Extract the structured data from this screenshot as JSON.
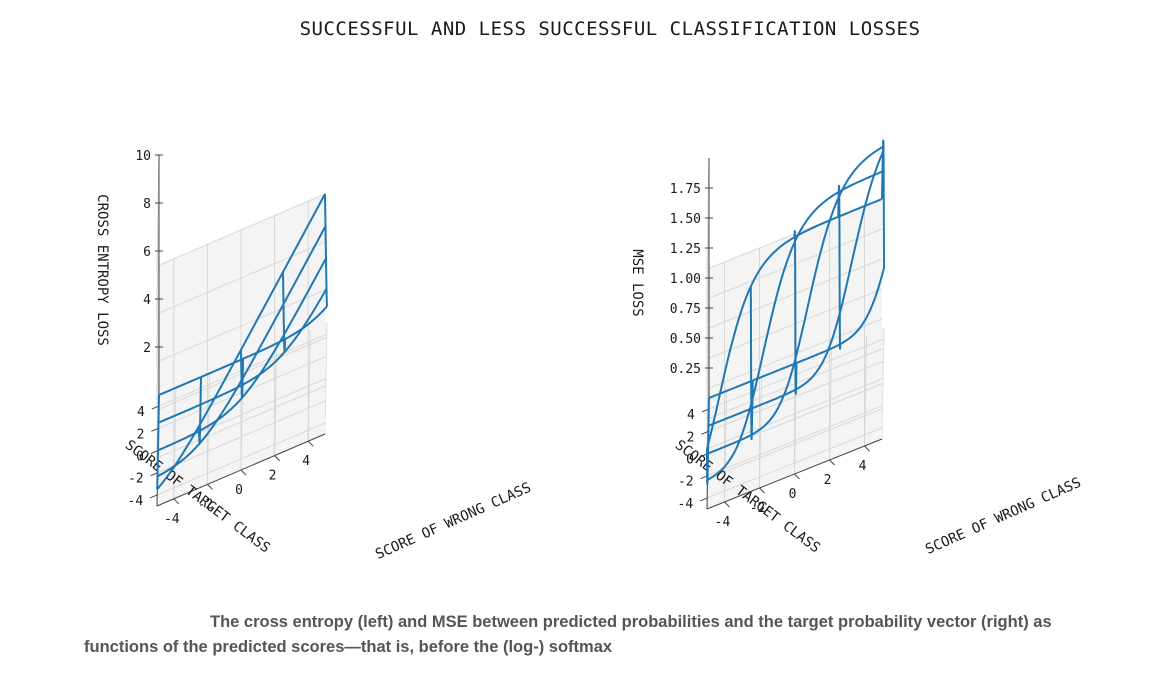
{
  "title": "SUCCESSFUL AND LESS SUCCESSFUL CLASSIFICATION LOSSES",
  "caption": "The cross entropy (left) and MSE between predicted probabilities and the target probability vector (right) as functions of the predicted scores—that is, before the (log-) softmax",
  "chart_data": [
    {
      "type": "surface",
      "zlabel": "CROSS ENTROPY LOSS",
      "xlabel": "SCORE OF TARGET CLASS",
      "ylabel": "SCORE OF WRONG CLASS",
      "x_ticks": [
        "4",
        "2",
        "0",
        "-2",
        "-4"
      ],
      "y_ticks": [
        "-4",
        "-2",
        "0",
        "2",
        "4"
      ],
      "z_ticks": [
        "2",
        "4",
        "6",
        "8",
        "10"
      ],
      "xlim": [
        -5,
        5
      ],
      "ylim": [
        -5,
        5
      ],
      "zlim": [
        0,
        10
      ],
      "function": "cross_entropy",
      "grid_values": [
        -5,
        -2.5,
        0,
        2.5,
        5
      ],
      "line_color": "#1f77b4"
    },
    {
      "type": "surface",
      "zlabel": "MSE LOSS",
      "xlabel": "SCORE OF TARGET CLASS",
      "ylabel": "SCORE OF WRONG CLASS",
      "x_ticks": [
        "4",
        "2",
        "0",
        "-2",
        "-4"
      ],
      "y_ticks": [
        "-4",
        "-2",
        "0",
        "2",
        "4"
      ],
      "z_ticks": [
        "0.25",
        "0.50",
        "0.75",
        "1.00",
        "1.25",
        "1.50",
        "1.75"
      ],
      "xlim": [
        -5,
        5
      ],
      "ylim": [
        -5,
        5
      ],
      "zlim": [
        0,
        2
      ],
      "function": "mse",
      "grid_values": [
        -5,
        -2.5,
        0,
        2.5,
        5
      ],
      "line_color": "#1f77b4"
    }
  ]
}
